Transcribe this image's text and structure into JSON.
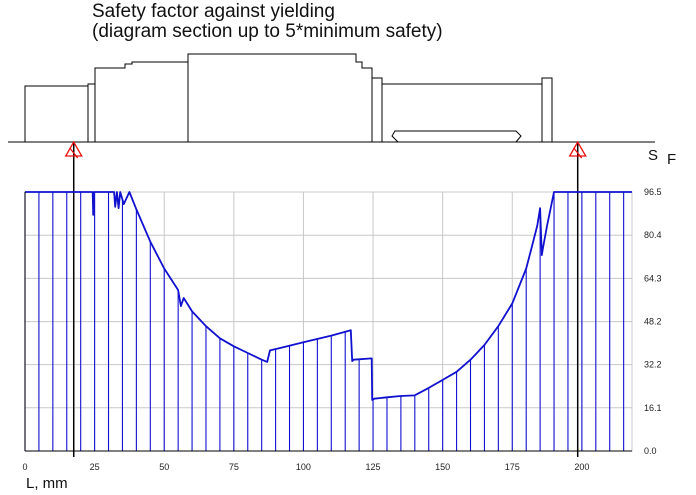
{
  "title_line1": "Safety factor against yielding",
  "title_line2": "(diagram section up to 5*minimum safety)",
  "colors": {
    "curve": "#1010d0",
    "grid": "#c8c8c8",
    "axis": "#000000",
    "support_marker": "#ee1111",
    "shaft_outline": "#000000"
  },
  "chart_data": {
    "type": "line",
    "title": "Safety factor against yielding (diagram section up to 5*minimum safety)",
    "xlabel": "L, mm",
    "ylabel": "S F",
    "ylabel_main": "S",
    "ylabel_sub": "F",
    "xlim": [
      0,
      218
    ],
    "ylim": [
      0,
      96.5
    ],
    "x_ticks": [
      0,
      25,
      50,
      75,
      100,
      125,
      150,
      175,
      200
    ],
    "x_tick_labels": [
      "0",
      "25",
      "50",
      "75",
      "100",
      "125",
      "150",
      "175",
      "200"
    ],
    "y_ticks": [
      0,
      16.1,
      32.2,
      48.2,
      64.3,
      80.4,
      96.5
    ],
    "y_tick_labels": [
      "0.0",
      "16.1",
      "32.2",
      "48.2",
      "64.3",
      "80.4",
      "96.5"
    ],
    "grid": true,
    "fill_hatch": "vertical lines under curve",
    "supports_x": [
      17.5,
      198.5
    ],
    "series": [
      {
        "x": [
          0,
          24.3,
          24.5,
          24.8,
          32,
          32.4,
          33,
          33.6,
          34.2,
          35.5,
          37.5,
          40,
          45,
          50,
          55,
          56,
          57,
          60,
          65,
          70,
          75,
          80,
          85,
          87,
          88,
          92,
          100,
          110,
          117,
          117.5,
          118,
          124.5,
          124.7,
          125.4,
          130,
          135,
          140,
          141,
          145,
          150,
          155,
          160,
          165,
          170,
          175,
          180,
          182,
          184,
          185,
          185.6,
          186,
          187.5,
          190,
          218
        ],
        "y": [
          96.5,
          96.5,
          88,
          96.5,
          96.5,
          91,
          96.5,
          90.5,
          96.5,
          92,
          96.5,
          90,
          78,
          68,
          60,
          54,
          57,
          52,
          46.5,
          42,
          39,
          36.5,
          34,
          33.2,
          37.5,
          38.5,
          40.5,
          43,
          45,
          33.5,
          34,
          34.5,
          19,
          19.5,
          20,
          20.5,
          20.7,
          21.3,
          23.5,
          26.5,
          29.5,
          34,
          39.5,
          46.5,
          55,
          68,
          76,
          84,
          90.5,
          73,
          75.5,
          84,
          96.5,
          96.5
        ]
      }
    ]
  }
}
